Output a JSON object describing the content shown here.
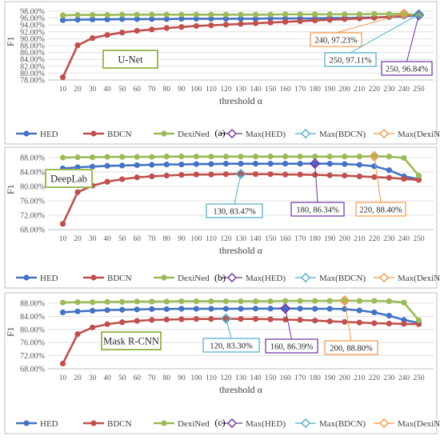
{
  "chart_data": [
    {
      "type": "line",
      "panel_label": "(a)",
      "title": "U-Net",
      "ylabel": "F1",
      "xlabel": "threshold α",
      "ylim": [
        78,
        98
      ],
      "y_ticks": [
        78,
        80,
        82,
        84,
        86,
        88,
        90,
        92,
        94,
        96,
        98
      ],
      "y_tick_labels": [
        "78.00%",
        "80.00%",
        "82.00%",
        "84.00%",
        "86.00%",
        "88.00%",
        "90.00%",
        "92.00%",
        "94.00%",
        "96.00%",
        "98.00%"
      ],
      "x": [
        10,
        20,
        30,
        40,
        50,
        60,
        70,
        80,
        90,
        100,
        110,
        120,
        130,
        140,
        150,
        160,
        170,
        180,
        190,
        200,
        210,
        220,
        230,
        240,
        250
      ],
      "series": [
        {
          "name": "HED",
          "color": "#4472c4",
          "values": [
            95.4,
            95.5,
            95.6,
            95.6,
            95.7,
            95.7,
            95.7,
            95.7,
            95.8,
            95.8,
            95.8,
            95.8,
            95.8,
            95.8,
            95.9,
            95.9,
            95.9,
            95.9,
            96.0,
            96.0,
            96.1,
            96.2,
            96.3,
            96.5,
            96.84
          ]
        },
        {
          "name": "BDCN",
          "color": "#c0504d",
          "values": [
            78.8,
            88.1,
            90.2,
            91.1,
            91.8,
            92.3,
            92.7,
            93.1,
            93.4,
            93.7,
            93.9,
            94.1,
            94.3,
            94.5,
            94.7,
            94.9,
            95.1,
            95.3,
            95.5,
            95.7,
            95.9,
            96.1,
            96.4,
            96.7,
            97.11
          ]
        },
        {
          "name": "DexiNed",
          "color": "#9bbb59",
          "values": [
            96.8,
            96.9,
            96.9,
            96.9,
            97.0,
            97.0,
            97.0,
            97.0,
            97.0,
            97.0,
            97.0,
            97.0,
            97.0,
            97.0,
            97.0,
            97.1,
            97.1,
            97.1,
            97.1,
            97.1,
            97.1,
            97.2,
            97.2,
            97.23,
            96.9
          ]
        },
        {
          "name": "Max(HED)",
          "color": "#7030a0",
          "x": [
            250
          ],
          "values": [
            96.84
          ]
        },
        {
          "name": "Max(BDCN)",
          "color": "#4bacc6",
          "x": [
            250
          ],
          "values": [
            97.11
          ]
        },
        {
          "name": "Max(DexiNed)",
          "color": "#f79646",
          "x": [
            240
          ],
          "values": [
            97.23
          ]
        }
      ],
      "annotations": [
        {
          "text": "240, 97.23%",
          "color": "#f79646"
        },
        {
          "text": "250, 97.11%",
          "color": "#4bacc6"
        },
        {
          "text": "250, 96.84%",
          "color": "#7030a0"
        }
      ]
    },
    {
      "type": "line",
      "panel_label": "(b)",
      "title": "DeepLab",
      "ylabel": "F1",
      "xlabel": "threshold α",
      "ylim": [
        68,
        88
      ],
      "y_ticks": [
        68,
        72,
        76,
        80,
        84,
        88
      ],
      "y_tick_labels": [
        "68.00%",
        "72.00%",
        "76.00%",
        "80.00%",
        "84.00%",
        "88.00%"
      ],
      "x": [
        10,
        20,
        30,
        40,
        50,
        60,
        70,
        80,
        90,
        100,
        110,
        120,
        130,
        140,
        150,
        160,
        170,
        180,
        190,
        200,
        210,
        220,
        230,
        240,
        250
      ],
      "series": [
        {
          "name": "HED",
          "color": "#4472c4",
          "values": [
            85.0,
            85.3,
            85.5,
            85.7,
            85.8,
            85.9,
            86.0,
            86.1,
            86.1,
            86.2,
            86.2,
            86.3,
            86.3,
            86.3,
            86.3,
            86.3,
            86.3,
            86.34,
            86.3,
            86.2,
            86.0,
            85.6,
            84.5,
            82.8,
            82.0
          ]
        },
        {
          "name": "BDCN",
          "color": "#c0504d",
          "values": [
            69.6,
            78.4,
            80.2,
            81.3,
            82.0,
            82.5,
            82.8,
            83.0,
            83.2,
            83.3,
            83.3,
            83.4,
            83.47,
            83.4,
            83.4,
            83.3,
            83.3,
            83.2,
            83.1,
            83.0,
            82.8,
            82.6,
            82.4,
            82.1,
            81.8
          ]
        },
        {
          "name": "DexiNed",
          "color": "#9bbb59",
          "values": [
            88.0,
            88.1,
            88.1,
            88.2,
            88.2,
            88.2,
            88.2,
            88.3,
            88.3,
            88.3,
            88.3,
            88.3,
            88.3,
            88.3,
            88.3,
            88.3,
            88.3,
            88.3,
            88.3,
            88.3,
            88.3,
            88.4,
            88.3,
            87.9,
            83.0
          ]
        },
        {
          "name": "Max(HED)",
          "color": "#7030a0",
          "x": [
            180
          ],
          "values": [
            86.34
          ]
        },
        {
          "name": "Max(BDCN)",
          "color": "#4bacc6",
          "x": [
            130
          ],
          "values": [
            83.47
          ]
        },
        {
          "name": "Max(DexiNed)",
          "color": "#f79646",
          "x": [
            220
          ],
          "values": [
            88.4
          ]
        }
      ],
      "annotations": [
        {
          "text": "130, 83.47%",
          "color": "#4bacc6"
        },
        {
          "text": "180, 86.34%",
          "color": "#7030a0"
        },
        {
          "text": "220, 88.40%",
          "color": "#f79646"
        }
      ]
    },
    {
      "type": "line",
      "panel_label": "(c)",
      "title": "Mask R-CNN",
      "ylabel": "F1",
      "xlabel": "threshold α",
      "ylim": [
        68,
        88
      ],
      "y_ticks": [
        68,
        72,
        76,
        80,
        84,
        88
      ],
      "y_tick_labels": [
        "68.00%",
        "72.00%",
        "76.00%",
        "80.00%",
        "84.00%",
        "88.00%"
      ],
      "x": [
        10,
        20,
        30,
        40,
        50,
        60,
        70,
        80,
        90,
        100,
        110,
        120,
        130,
        140,
        150,
        160,
        170,
        180,
        190,
        200,
        210,
        220,
        230,
        240,
        250
      ],
      "series": [
        {
          "name": "HED",
          "color": "#4472c4",
          "values": [
            85.2,
            85.5,
            85.7,
            85.9,
            86.0,
            86.1,
            86.2,
            86.2,
            86.3,
            86.3,
            86.3,
            86.3,
            86.3,
            86.35,
            86.35,
            86.39,
            86.35,
            86.3,
            86.3,
            86.2,
            85.8,
            85.2,
            84.2,
            82.9,
            82.0
          ]
        },
        {
          "name": "BDCN",
          "color": "#c0504d",
          "values": [
            69.6,
            78.6,
            80.6,
            81.6,
            82.2,
            82.6,
            82.9,
            83.0,
            83.1,
            83.2,
            83.2,
            83.3,
            83.2,
            83.2,
            83.1,
            83.0,
            82.9,
            82.7,
            82.5,
            82.3,
            82.1,
            81.9,
            81.8,
            81.7,
            81.6
          ]
        },
        {
          "name": "DexiNed",
          "color": "#9bbb59",
          "values": [
            88.2,
            88.3,
            88.3,
            88.4,
            88.4,
            88.5,
            88.5,
            88.5,
            88.6,
            88.6,
            88.6,
            88.6,
            88.6,
            88.6,
            88.6,
            88.7,
            88.7,
            88.7,
            88.7,
            88.8,
            88.7,
            88.7,
            88.6,
            88.2,
            82.8
          ]
        },
        {
          "name": "Max(HED)",
          "color": "#7030a0",
          "x": [
            160
          ],
          "values": [
            86.39
          ]
        },
        {
          "name": "Max(BDCN)",
          "color": "#4bacc6",
          "x": [
            120
          ],
          "values": [
            83.3
          ]
        },
        {
          "name": "Max(DexiNed)",
          "color": "#f79646",
          "x": [
            200
          ],
          "values": [
            88.8
          ]
        }
      ],
      "annotations": [
        {
          "text": "120, 83.30%",
          "color": "#4bacc6"
        },
        {
          "text": "160, 86.39%",
          "color": "#7030a0"
        },
        {
          "text": "200, 88.80%",
          "color": "#f79646"
        }
      ]
    }
  ]
}
